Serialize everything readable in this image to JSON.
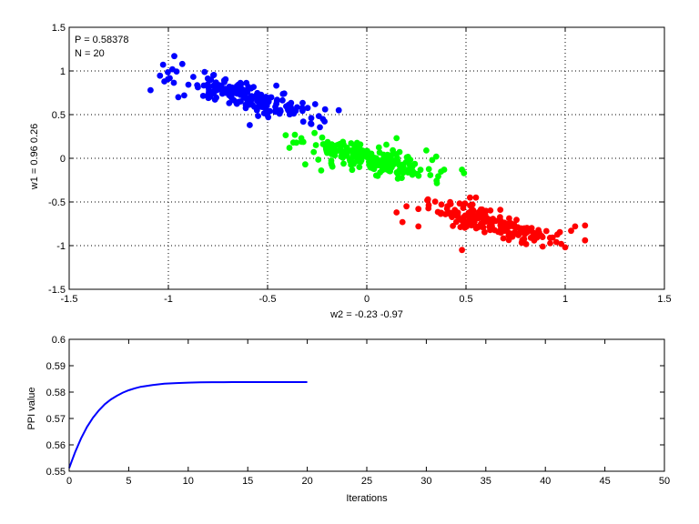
{
  "chart_data": [
    {
      "type": "scatter",
      "title": "",
      "xlabel": "w2 = -0.23  -0.97",
      "ylabel": "w1 = 0.96  0.26",
      "xlim": [
        -1.5,
        1.5
      ],
      "ylim": [
        -1.5,
        1.5
      ],
      "xticks": [
        "-1.5",
        "-1",
        "-0.5",
        "0",
        "0.5",
        "1",
        "1.5"
      ],
      "yticks": [
        "-1.5",
        "-1",
        "-0.5",
        "0",
        "0.5",
        "1",
        "1.5"
      ],
      "grid": "dotted",
      "annotations": [
        "P = 0.58378",
        "N = 20"
      ],
      "series": [
        {
          "color": "#0000ff",
          "center": [
            -0.6,
            0.7
          ],
          "spread_along": 0.2,
          "spread_across": 0.07,
          "count": 180,
          "seed": 11,
          "points": [
            [
              -1.09,
              0.78
            ],
            [
              -1.02,
              0.88
            ],
            [
              -0.97,
              1.17
            ],
            [
              -0.95,
              0.7
            ],
            [
              -0.92,
              0.72
            ],
            [
              -0.98,
              1.02
            ],
            [
              -0.93,
              1.08
            ],
            [
              -0.21,
              0.56
            ],
            [
              -0.26,
              0.62
            ],
            [
              -0.28,
              0.46
            ],
            [
              -0.32,
              0.42
            ],
            [
              -0.59,
              0.38
            ]
          ]
        },
        {
          "color": "#00ff00",
          "center": [
            0.0,
            0.0
          ],
          "spread_along": 0.18,
          "spread_across": 0.06,
          "count": 190,
          "seed": 23,
          "points": [
            [
              -0.37,
              0.18
            ],
            [
              -0.39,
              0.12
            ],
            [
              -0.33,
              0.23
            ],
            [
              -0.31,
              -0.07
            ],
            [
              -0.23,
              -0.14
            ],
            [
              0.3,
              0.09
            ],
            [
              0.33,
              -0.02
            ],
            [
              0.39,
              -0.13
            ],
            [
              0.48,
              -0.13
            ],
            [
              0.49,
              -0.17
            ],
            [
              0.35,
              0.02
            ],
            [
              0.15,
              0.23
            ]
          ]
        },
        {
          "color": "#ff0000",
          "center": [
            0.62,
            -0.73
          ],
          "spread_along": 0.17,
          "spread_across": 0.06,
          "count": 180,
          "seed": 37,
          "points": [
            [
              0.2,
              -0.55
            ],
            [
              0.26,
              -0.58
            ],
            [
              0.15,
              -0.62
            ],
            [
              0.18,
              -0.73
            ],
            [
              0.26,
              -0.78
            ],
            [
              1.05,
              -0.78
            ],
            [
              1.1,
              -0.77
            ],
            [
              1.1,
              -0.94
            ],
            [
              1.0,
              -1.02
            ],
            [
              1.03,
              -0.83
            ],
            [
              0.48,
              -1.05
            ],
            [
              0.55,
              -0.45
            ],
            [
              0.52,
              -0.45
            ],
            [
              0.98,
              -0.98
            ]
          ]
        }
      ]
    },
    {
      "type": "line",
      "title": "",
      "xlabel": "Iterations",
      "ylabel": "PPI value",
      "xlim": [
        0,
        50
      ],
      "ylim": [
        0.55,
        0.6
      ],
      "xticks": [
        "0",
        "5",
        "10",
        "15",
        "20",
        "25",
        "30",
        "35",
        "40",
        "45",
        "50"
      ],
      "yticks": [
        "0.55",
        "0.56",
        "0.57",
        "0.58",
        "0.59",
        "0.6"
      ],
      "grid": "off",
      "series": [
        {
          "color": "#0000ff",
          "x": [
            0,
            0.5,
            1,
            1.5,
            2,
            2.5,
            3,
            3.5,
            4,
            4.5,
            5,
            5.5,
            6,
            7,
            8,
            9,
            10,
            11,
            12,
            13,
            14,
            15,
            16,
            17,
            18,
            19,
            20
          ],
          "y": [
            0.5512,
            0.5572,
            0.5625,
            0.5668,
            0.5703,
            0.5731,
            0.5754,
            0.5772,
            0.5786,
            0.5798,
            0.5807,
            0.5814,
            0.582,
            0.5827,
            0.5832,
            0.5834,
            0.5836,
            0.5837,
            0.58375,
            0.58377,
            0.58378,
            0.58378,
            0.58378,
            0.58378,
            0.58378,
            0.58378,
            0.58378
          ]
        }
      ]
    }
  ]
}
